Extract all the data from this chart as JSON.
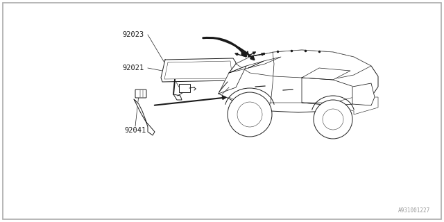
{
  "background_color": "#ffffff",
  "border_color": "#aaaaaa",
  "line_color": "#1a1a1a",
  "label_color": "#1a1a1a",
  "watermark": "A931001227",
  "label_92023": "92023",
  "label_92021": "92021",
  "label_92041": "92041",
  "label_fontsize": 7.5
}
